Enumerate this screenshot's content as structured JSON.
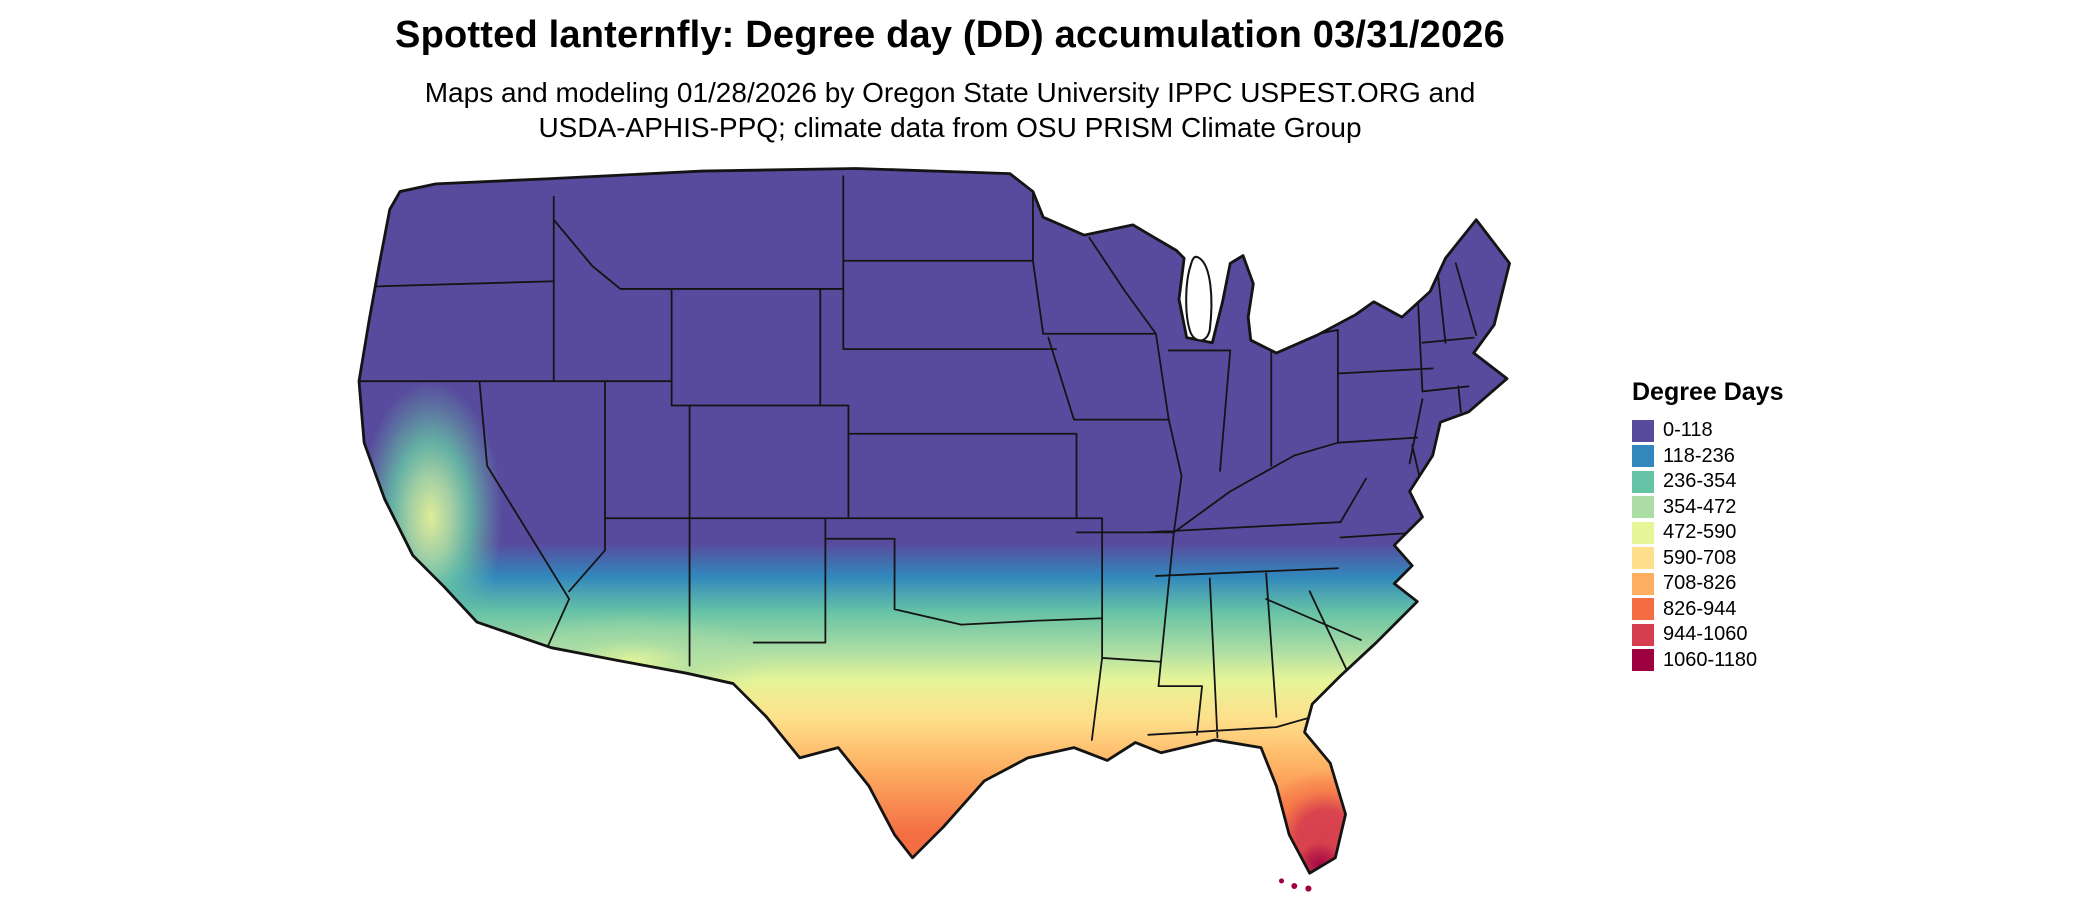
{
  "header": {
    "title": "Spotted lanternfly: Degree day (DD) accumulation 03/31/2026",
    "subtitle_line1": "Maps and modeling 01/28/2026 by Oregon State University IPPC USPEST.ORG and",
    "subtitle_line2": "USDA-APHIS-PPQ; climate data from OSU PRISM Climate Group"
  },
  "legend": {
    "title": "Degree Days",
    "entries": [
      {
        "label": "0-118",
        "color": "#584b9e"
      },
      {
        "label": "118-236",
        "color": "#3288bd"
      },
      {
        "label": "236-354",
        "color": "#66c2a5"
      },
      {
        "label": "354-472",
        "color": "#abdda4"
      },
      {
        "label": "472-590",
        "color": "#e6f598"
      },
      {
        "label": "590-708",
        "color": "#fee08b"
      },
      {
        "label": "708-826",
        "color": "#fdae61"
      },
      {
        "label": "826-944",
        "color": "#f46d43"
      },
      {
        "label": "944-1060",
        "color": "#d53e4f"
      },
      {
        "label": "1060-1180",
        "color": "#9e0142"
      }
    ]
  }
}
